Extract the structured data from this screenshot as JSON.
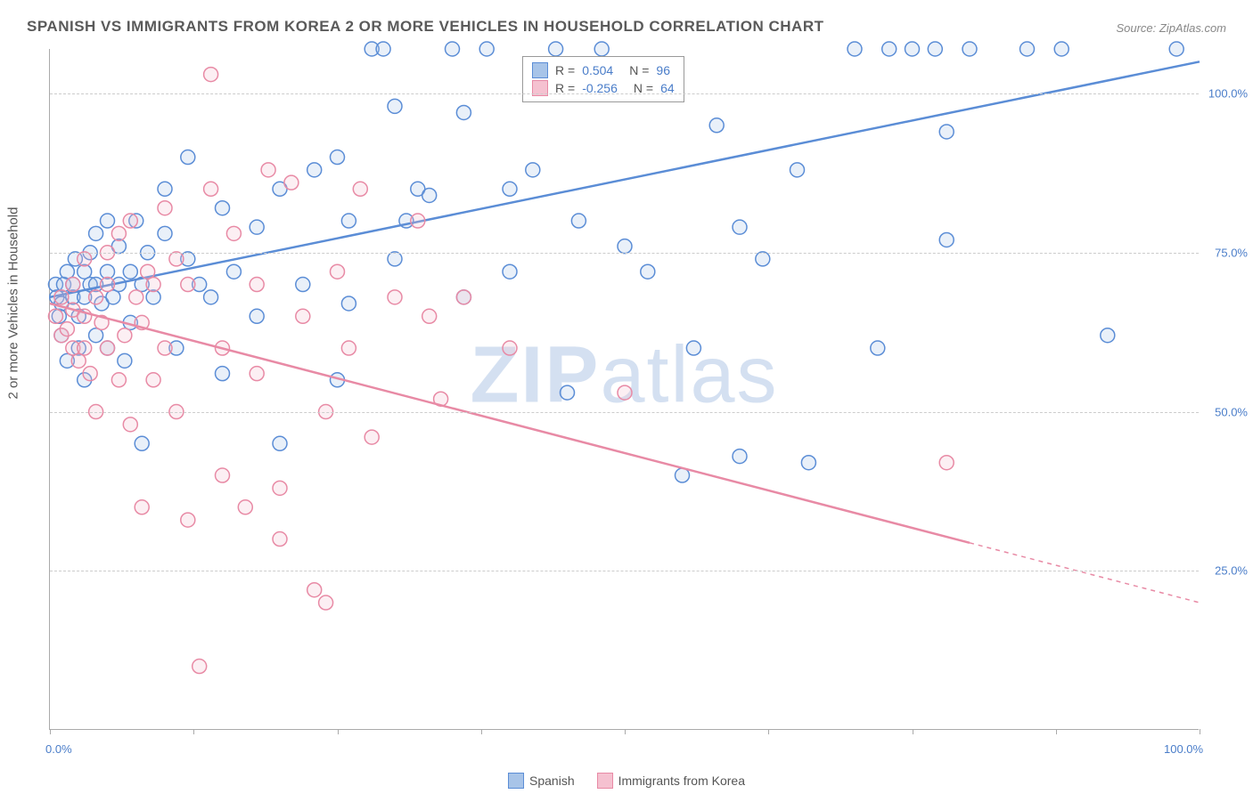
{
  "title": "SPANISH VS IMMIGRANTS FROM KOREA 2 OR MORE VEHICLES IN HOUSEHOLD CORRELATION CHART",
  "source": "Source: ZipAtlas.com",
  "ylabel": "2 or more Vehicles in Household",
  "watermark_bold": "ZIP",
  "watermark_light": "atlas",
  "chart": {
    "type": "scatter",
    "xlim": [
      0,
      100
    ],
    "ylim": [
      0,
      107
    ],
    "xticks": [
      0,
      12.5,
      25,
      37.5,
      50,
      62.5,
      75,
      87.5,
      100
    ],
    "xtick_labels": {
      "0": "0.0%",
      "100": "100.0%"
    },
    "yticks": [
      25,
      50,
      75,
      100
    ],
    "ytick_labels": [
      "25.0%",
      "50.0%",
      "75.0%",
      "100.0%"
    ],
    "grid_color": "#cccccc",
    "background_color": "#ffffff",
    "marker_radius": 8,
    "marker_stroke_width": 1.5,
    "marker_fill_opacity": 0.25,
    "line_width": 2.5,
    "series": [
      {
        "name": "Spanish",
        "color_stroke": "#5b8dd6",
        "color_fill": "#a8c4e8",
        "r_value": "0.504",
        "n_value": "96",
        "trend": {
          "x1": 0,
          "y1": 68,
          "x2": 100,
          "y2": 105
        },
        "trend_dash_from_x": null,
        "points": [
          [
            0.5,
            70
          ],
          [
            0.6,
            68
          ],
          [
            0.8,
            65
          ],
          [
            1,
            62
          ],
          [
            1,
            67
          ],
          [
            1.2,
            70
          ],
          [
            1.5,
            58
          ],
          [
            1.5,
            72
          ],
          [
            2,
            70
          ],
          [
            2,
            68
          ],
          [
            2.2,
            74
          ],
          [
            2.5,
            65
          ],
          [
            2.5,
            60
          ],
          [
            3,
            72
          ],
          [
            3,
            55
          ],
          [
            3,
            68
          ],
          [
            3.5,
            75
          ],
          [
            3.5,
            70
          ],
          [
            4,
            70
          ],
          [
            4,
            78
          ],
          [
            4,
            62
          ],
          [
            4.5,
            67
          ],
          [
            5,
            72
          ],
          [
            5,
            60
          ],
          [
            5,
            80
          ],
          [
            5.5,
            68
          ],
          [
            6,
            70
          ],
          [
            6,
            76
          ],
          [
            6.5,
            58
          ],
          [
            7,
            72
          ],
          [
            7,
            64
          ],
          [
            7.5,
            80
          ],
          [
            8,
            70
          ],
          [
            8,
            45
          ],
          [
            8.5,
            75
          ],
          [
            9,
            68
          ],
          [
            10,
            78
          ],
          [
            10,
            85
          ],
          [
            11,
            60
          ],
          [
            12,
            74
          ],
          [
            12,
            90
          ],
          [
            13,
            70
          ],
          [
            14,
            68
          ],
          [
            15,
            56
          ],
          [
            15,
            82
          ],
          [
            16,
            72
          ],
          [
            18,
            65
          ],
          [
            18,
            79
          ],
          [
            20,
            85
          ],
          [
            20,
            45
          ],
          [
            22,
            70
          ],
          [
            23,
            88
          ],
          [
            25,
            55
          ],
          [
            25,
            90
          ],
          [
            26,
            80
          ],
          [
            26,
            67
          ],
          [
            28,
            107
          ],
          [
            29,
            107
          ],
          [
            30,
            74
          ],
          [
            30,
            98
          ],
          [
            31,
            80
          ],
          [
            32,
            85
          ],
          [
            33,
            84
          ],
          [
            35,
            107
          ],
          [
            36,
            97
          ],
          [
            36,
            68
          ],
          [
            38,
            107
          ],
          [
            40,
            85
          ],
          [
            40,
            72
          ],
          [
            42,
            88
          ],
          [
            44,
            107
          ],
          [
            45,
            53
          ],
          [
            46,
            80
          ],
          [
            48,
            107
          ],
          [
            50,
            76
          ],
          [
            52,
            72
          ],
          [
            55,
            40
          ],
          [
            56,
            60
          ],
          [
            58,
            95
          ],
          [
            60,
            79
          ],
          [
            60,
            43
          ],
          [
            62,
            74
          ],
          [
            65,
            88
          ],
          [
            66,
            42
          ],
          [
            70,
            107
          ],
          [
            72,
            60
          ],
          [
            73,
            107
          ],
          [
            75,
            107
          ],
          [
            77,
            107
          ],
          [
            78,
            94
          ],
          [
            78,
            77
          ],
          [
            80,
            107
          ],
          [
            85,
            107
          ],
          [
            88,
            107
          ],
          [
            92,
            62
          ],
          [
            98,
            107
          ]
        ]
      },
      {
        "name": "Immigrants from Korea",
        "color_stroke": "#e88aa5",
        "color_fill": "#f5c1d0",
        "r_value": "-0.256",
        "n_value": "64",
        "trend": {
          "x1": 0,
          "y1": 67,
          "x2": 100,
          "y2": 20
        },
        "trend_dash_from_x": 80,
        "points": [
          [
            0.5,
            65
          ],
          [
            1,
            68
          ],
          [
            1,
            62
          ],
          [
            1.5,
            63
          ],
          [
            2,
            66
          ],
          [
            2,
            60
          ],
          [
            2,
            70
          ],
          [
            2.5,
            58
          ],
          [
            3,
            65
          ],
          [
            3,
            74
          ],
          [
            3,
            60
          ],
          [
            3.5,
            56
          ],
          [
            4,
            68
          ],
          [
            4,
            50
          ],
          [
            4.5,
            64
          ],
          [
            5,
            60
          ],
          [
            5,
            75
          ],
          [
            5,
            70
          ],
          [
            6,
            78
          ],
          [
            6,
            55
          ],
          [
            6.5,
            62
          ],
          [
            7,
            80
          ],
          [
            7,
            48
          ],
          [
            7.5,
            68
          ],
          [
            8,
            64
          ],
          [
            8,
            35
          ],
          [
            8.5,
            72
          ],
          [
            9,
            70
          ],
          [
            9,
            55
          ],
          [
            10,
            82
          ],
          [
            10,
            60
          ],
          [
            11,
            74
          ],
          [
            11,
            50
          ],
          [
            12,
            33
          ],
          [
            12,
            70
          ],
          [
            13,
            10
          ],
          [
            14,
            85
          ],
          [
            14,
            103
          ],
          [
            15,
            60
          ],
          [
            15,
            40
          ],
          [
            16,
            78
          ],
          [
            17,
            35
          ],
          [
            18,
            70
          ],
          [
            18,
            56
          ],
          [
            19,
            88
          ],
          [
            20,
            38
          ],
          [
            20,
            30
          ],
          [
            21,
            86
          ],
          [
            22,
            65
          ],
          [
            23,
            22
          ],
          [
            24,
            50
          ],
          [
            24,
            20
          ],
          [
            25,
            72
          ],
          [
            26,
            60
          ],
          [
            27,
            85
          ],
          [
            28,
            46
          ],
          [
            30,
            68
          ],
          [
            32,
            80
          ],
          [
            33,
            65
          ],
          [
            34,
            52
          ],
          [
            36,
            68
          ],
          [
            40,
            60
          ],
          [
            50,
            53
          ],
          [
            78,
            42
          ]
        ]
      }
    ],
    "legend_labels": {
      "r": "R =",
      "n": "N ="
    },
    "bottom_legend": [
      "Spanish",
      "Immigrants from Korea"
    ]
  }
}
